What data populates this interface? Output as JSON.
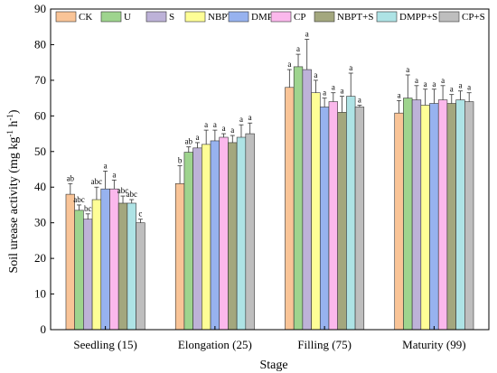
{
  "chart_data": {
    "type": "bar",
    "title": "",
    "xlabel": "Stage",
    "ylabel_main": "Soil urease activity (mg kg",
    "ylabel_sup1": "-1",
    "ylabel_mid": " h",
    "ylabel_sup2": "-1",
    "ylabel_end": ")",
    "ylim": [
      0,
      90
    ],
    "yticks": [
      "0",
      "10",
      "20",
      "30",
      "40",
      "50",
      "60",
      "70",
      "80",
      "90"
    ],
    "categories": [
      "Seedling (15)",
      "Elongation (25)",
      "Filling (75)",
      "Maturity (99)"
    ],
    "legend_placement": "top",
    "series": [
      {
        "name": "CK",
        "color": "#F9C497",
        "values": [
          38.0,
          41.0,
          68.0,
          60.8
        ],
        "errors": [
          3.0,
          5.0,
          5.0,
          3.5
        ],
        "labels": [
          "ab",
          "b",
          "a",
          "a"
        ]
      },
      {
        "name": "U",
        "color": "#9ED48E",
        "values": [
          33.5,
          49.8,
          73.8,
          65.0
        ],
        "errors": [
          1.5,
          1.5,
          3.5,
          6.5
        ],
        "labels": [
          "abc",
          "ab",
          "a",
          "a"
        ]
      },
      {
        "name": "S",
        "color": "#BDB2D8",
        "values": [
          31.0,
          51.0,
          73.0,
          64.5
        ],
        "errors": [
          1.5,
          1.5,
          8.5,
          4.0
        ],
        "labels": [
          "bc",
          "a",
          "a",
          "a"
        ]
      },
      {
        "name": "NBPT",
        "color": "#FEFE96",
        "values": [
          36.5,
          52.0,
          66.5,
          63.0
        ],
        "errors": [
          3.5,
          4.0,
          3.5,
          4.5
        ],
        "labels": [
          "abc",
          "a",
          "a",
          "a"
        ]
      },
      {
        "name": "DMPP",
        "color": "#97B2EF",
        "values": [
          39.5,
          53.0,
          62.5,
          63.5
        ],
        "errors": [
          5.0,
          3.0,
          2.5,
          4.0
        ],
        "labels": [
          "a",
          "a",
          "a",
          "a"
        ]
      },
      {
        "name": "CP",
        "color": "#FBB8EC",
        "values": [
          39.5,
          54.0,
          64.0,
          64.5
        ],
        "errors": [
          2.5,
          1.0,
          2.5,
          4.0
        ],
        "labels": [
          "a",
          "a",
          "a",
          "a"
        ]
      },
      {
        "name": "NBPT+S",
        "color": "#A3A77E",
        "values": [
          35.5,
          52.5,
          61.0,
          63.5
        ],
        "errors": [
          2.0,
          2.0,
          4.5,
          2.5
        ],
        "labels": [
          "abc",
          "a",
          "a",
          "a"
        ]
      },
      {
        "name": "DMPP+S",
        "color": "#AEE3E5",
        "values": [
          35.5,
          54.0,
          65.5,
          64.5
        ],
        "errors": [
          1.0,
          3.5,
          6.5,
          2.5
        ],
        "labels": [
          "abc",
          "a",
          "a",
          "a"
        ]
      },
      {
        "name": "CP+S",
        "color": "#BEBEBE",
        "values": [
          30.0,
          55.0,
          62.5,
          64.0
        ],
        "errors": [
          1.0,
          3.0,
          0.5,
          2.5
        ],
        "labels": [
          "c",
          "a",
          "a",
          "a"
        ]
      }
    ]
  }
}
